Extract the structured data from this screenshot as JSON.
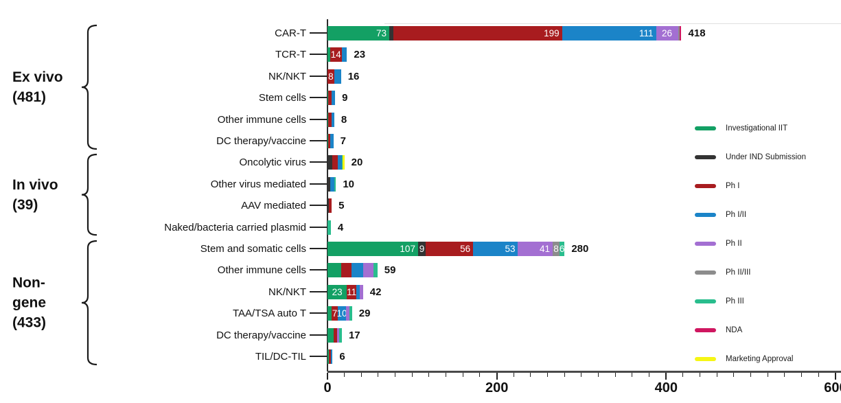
{
  "legend": {
    "items": [
      {
        "name": "Investigational IIT",
        "color": "#13a064"
      },
      {
        "name": "Under IND Submission",
        "color": "#333333"
      },
      {
        "name": "Ph I",
        "color": "#a81c1f"
      },
      {
        "name": "Ph I/II",
        "color": "#1b84c8"
      },
      {
        "name": "Ph II",
        "color": "#a36fd2"
      },
      {
        "name": "Ph II/III",
        "color": "#8c8c8c"
      },
      {
        "name": "Ph III",
        "color": "#29bd8d"
      },
      {
        "name": "NDA",
        "color": "#cf1760"
      },
      {
        "name": "Marketing Approval",
        "color": "#f6f615"
      }
    ]
  },
  "chart_data": {
    "type": "bar",
    "orientation": "horizontal",
    "stacked": true,
    "xlim": [
      0,
      600
    ],
    "x_ticks": [
      "0",
      "200",
      "400",
      "600"
    ],
    "x_tick_values": [
      0,
      200,
      400,
      600
    ],
    "minor_tick_step": 20,
    "series_names": [
      "Investigational IIT",
      "Under IND Submission",
      "Ph I",
      "Ph I/II",
      "Ph II",
      "Ph II/III",
      "Ph III",
      "NDA",
      "Marketing Approval"
    ],
    "groups": [
      {
        "name": "Ex vivo",
        "total": 481,
        "label_lines": [
          "Ex vivo",
          "(481)"
        ],
        "rows": [
          {
            "category": "CAR-T",
            "total": 418,
            "segments": [
              {
                "series": "Investigational IIT",
                "value": 73,
                "label": "73"
              },
              {
                "series": "Under IND Submission",
                "value": 5,
                "label": ""
              },
              {
                "series": "Ph I",
                "value": 199,
                "label": "199"
              },
              {
                "series": "Ph I/II",
                "value": 111,
                "label": "111"
              },
              {
                "series": "Ph II",
                "value": 26,
                "label": "26"
              },
              {
                "series": "Ph II/III",
                "value": 2,
                "label": ""
              },
              {
                "series": "NDA",
                "value": 2,
                "label": ""
              }
            ]
          },
          {
            "category": "TCR-T",
            "total": 23,
            "segments": [
              {
                "series": "Investigational IIT",
                "value": 3,
                "label": ""
              },
              {
                "series": "Ph I",
                "value": 14,
                "label": "14"
              },
              {
                "series": "Ph I/II",
                "value": 6,
                "label": ""
              }
            ]
          },
          {
            "category": "NK/NKT",
            "total": 16,
            "segments": [
              {
                "series": "Ph I",
                "value": 8,
                "label": "8"
              },
              {
                "series": "Ph I/II",
                "value": 8,
                "label": ""
              }
            ]
          },
          {
            "category": "Stem cells",
            "total": 9,
            "segments": [
              {
                "series": "Investigational IIT",
                "value": 1,
                "label": ""
              },
              {
                "series": "Ph I",
                "value": 4,
                "label": ""
              },
              {
                "series": "Ph I/II",
                "value": 4,
                "label": ""
              }
            ]
          },
          {
            "category": "Other immune cells",
            "total": 8,
            "segments": [
              {
                "series": "Investigational IIT",
                "value": 1,
                "label": ""
              },
              {
                "series": "Ph I",
                "value": 4,
                "label": ""
              },
              {
                "series": "Ph I/II",
                "value": 3,
                "label": ""
              }
            ]
          },
          {
            "category": "DC therapy/vaccine",
            "total": 7,
            "segments": [
              {
                "series": "Investigational IIT",
                "value": 1,
                "label": ""
              },
              {
                "series": "Ph I",
                "value": 2,
                "label": ""
              },
              {
                "series": "Ph I/II",
                "value": 4,
                "label": ""
              }
            ]
          }
        ]
      },
      {
        "name": "In vivo",
        "total": 39,
        "label_lines": [
          "In vivo",
          "(39)"
        ],
        "rows": [
          {
            "category": "Oncolytic virus",
            "total": 20,
            "segments": [
              {
                "series": "Under IND Submission",
                "value": 6,
                "label": ""
              },
              {
                "series": "Ph I",
                "value": 6,
                "label": ""
              },
              {
                "series": "Ph I/II",
                "value": 5,
                "label": ""
              },
              {
                "series": "Ph III",
                "value": 1,
                "label": ""
              },
              {
                "series": "Marketing Approval",
                "value": 2,
                "label": ""
              }
            ]
          },
          {
            "category": "Other virus mediated",
            "total": 10,
            "segments": [
              {
                "series": "Under IND Submission",
                "value": 3,
                "label": ""
              },
              {
                "series": "Ph I/II",
                "value": 5,
                "label": ""
              },
              {
                "series": "Ph III",
                "value": 2,
                "label": ""
              }
            ]
          },
          {
            "category": "AAV mediated",
            "total": 5,
            "segments": [
              {
                "series": "Under IND Submission",
                "value": 2,
                "label": ""
              },
              {
                "series": "Ph I",
                "value": 3,
                "label": ""
              }
            ]
          },
          {
            "category": "Naked/bacteria carried plasmid",
            "total": 4,
            "segments": [
              {
                "series": "Ph III",
                "value": 4,
                "label": ""
              }
            ]
          }
        ]
      },
      {
        "name": "Non-gene",
        "total": 433,
        "label_lines": [
          "Non-",
          "gene",
          "(433)"
        ],
        "rows": [
          {
            "category": "Stem and somatic cells",
            "total": 280,
            "segments": [
              {
                "series": "Investigational IIT",
                "value": 107,
                "label": "107"
              },
              {
                "series": "Under IND Submission",
                "value": 9,
                "label": "9"
              },
              {
                "series": "Ph I",
                "value": 56,
                "label": "56"
              },
              {
                "series": "Ph I/II",
                "value": 53,
                "label": "53"
              },
              {
                "series": "Ph II",
                "value": 41,
                "label": "41"
              },
              {
                "series": "Ph II/III",
                "value": 8,
                "label": "8"
              },
              {
                "series": "Ph III",
                "value": 6,
                "label": "6"
              }
            ]
          },
          {
            "category": "Other immune cells",
            "total": 59,
            "segments": [
              {
                "series": "Investigational IIT",
                "value": 16,
                "label": ""
              },
              {
                "series": "Ph I",
                "value": 12,
                "label": ""
              },
              {
                "series": "Ph I/II",
                "value": 14,
                "label": ""
              },
              {
                "series": "Ph II",
                "value": 12,
                "label": ""
              },
              {
                "series": "Ph III",
                "value": 5,
                "label": ""
              }
            ]
          },
          {
            "category": "NK/NKT",
            "total": 42,
            "segments": [
              {
                "series": "Investigational IIT",
                "value": 23,
                "label": "23"
              },
              {
                "series": "Ph I",
                "value": 11,
                "label": "11"
              },
              {
                "series": "Ph I/II",
                "value": 4,
                "label": ""
              },
              {
                "series": "Ph II",
                "value": 4,
                "label": ""
              }
            ]
          },
          {
            "category": "TAA/TSA auto T",
            "total": 29,
            "segments": [
              {
                "series": "Investigational IIT",
                "value": 5,
                "label": ""
              },
              {
                "series": "Ph I",
                "value": 7,
                "label": "7"
              },
              {
                "series": "Ph I/II",
                "value": 10,
                "label": "10"
              },
              {
                "series": "Ph II",
                "value": 4,
                "label": ""
              },
              {
                "series": "Ph III",
                "value": 3,
                "label": ""
              }
            ]
          },
          {
            "category": "DC therapy/vaccine",
            "total": 17,
            "segments": [
              {
                "series": "Investigational IIT",
                "value": 7,
                "label": ""
              },
              {
                "series": "Ph I",
                "value": 4,
                "label": ""
              },
              {
                "series": "Ph II",
                "value": 3,
                "label": ""
              },
              {
                "series": "Ph III",
                "value": 3,
                "label": ""
              }
            ]
          },
          {
            "category": "TIL/DC-TIL",
            "total": 6,
            "segments": [
              {
                "series": "Investigational IIT",
                "value": 2,
                "label": ""
              },
              {
                "series": "Ph I",
                "value": 2,
                "label": ""
              },
              {
                "series": "Ph I/II",
                "value": 2,
                "label": ""
              }
            ]
          }
        ]
      }
    ]
  }
}
